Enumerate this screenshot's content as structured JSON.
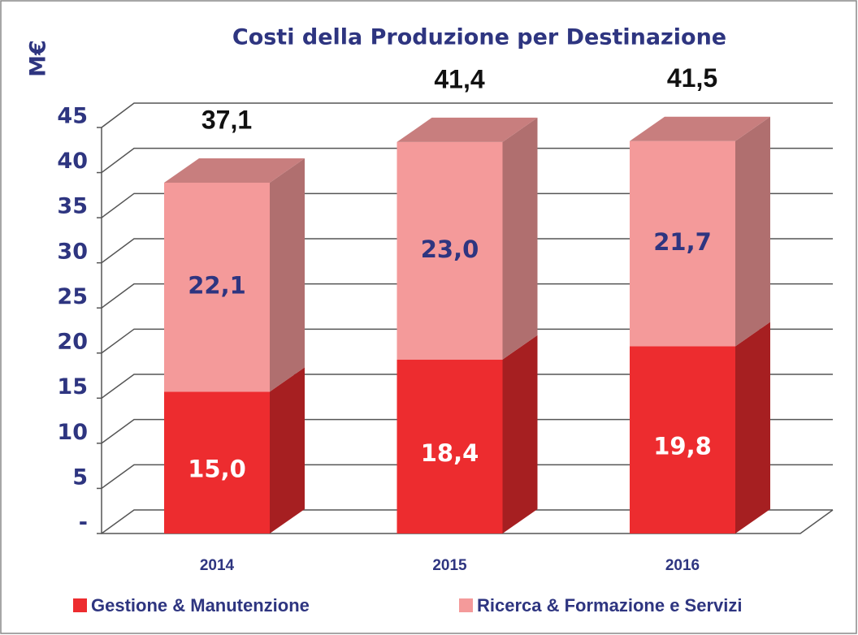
{
  "chart_data": {
    "type": "bar3d-stacked",
    "title": "Costi della Produzione per Destinazione",
    "y_label": "M€",
    "categories": [
      "2014",
      "2015",
      "2016"
    ],
    "series": [
      {
        "name": "Gestione & Manutenzione",
        "color": "#ed2c2f",
        "values": [
          15.0,
          18.4,
          19.8
        ],
        "value_labels": [
          "15,0",
          "18,4",
          "19,8"
        ]
      },
      {
        "name": "Ricerca & Formazione e Servizi",
        "color": "#f49a9a",
        "values": [
          22.1,
          23.0,
          21.7
        ],
        "value_labels": [
          "22,1",
          "23,0",
          "21,7"
        ]
      }
    ],
    "totals": {
      "values": [
        37.1,
        41.4,
        41.5
      ],
      "value_labels": [
        "37,1",
        "41,4",
        "41,5"
      ]
    },
    "ylim": [
      0,
      45
    ],
    "yticks": [
      {
        "value": 0,
        "label": "-"
      },
      5,
      10,
      15,
      20,
      25,
      30,
      35,
      40,
      45
    ],
    "grid": true
  }
}
